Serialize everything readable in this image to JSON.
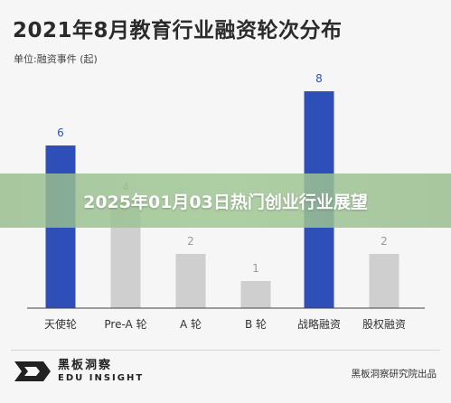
{
  "chart_data": {
    "type": "bar",
    "title": "2021年8月教育行业融资轮次分布",
    "subtitle": "单位:融资事件 (起)",
    "categories": [
      "天使轮",
      "Pre-A 轮",
      "A 轮",
      "B 轮",
      "战略融资",
      "股权融资"
    ],
    "values": [
      6,
      4,
      2,
      1,
      8,
      2
    ],
    "highlight_color": "#2f4fb8",
    "default_color": "#cfcfcf",
    "highlight_categories": [
      "天使轮",
      "战略融资"
    ],
    "ylim": [
      0,
      8
    ],
    "grid": false,
    "data_labels": [
      "6",
      "4",
      "2",
      "1",
      "8",
      "2"
    ]
  },
  "banner": {
    "text": "2025年01月03日热门创业行业展望"
  },
  "footer": {
    "logo_cn": "黑板洞察",
    "logo_en": "EDU INSIGHT",
    "source": "黑板洞察研究院出品"
  }
}
